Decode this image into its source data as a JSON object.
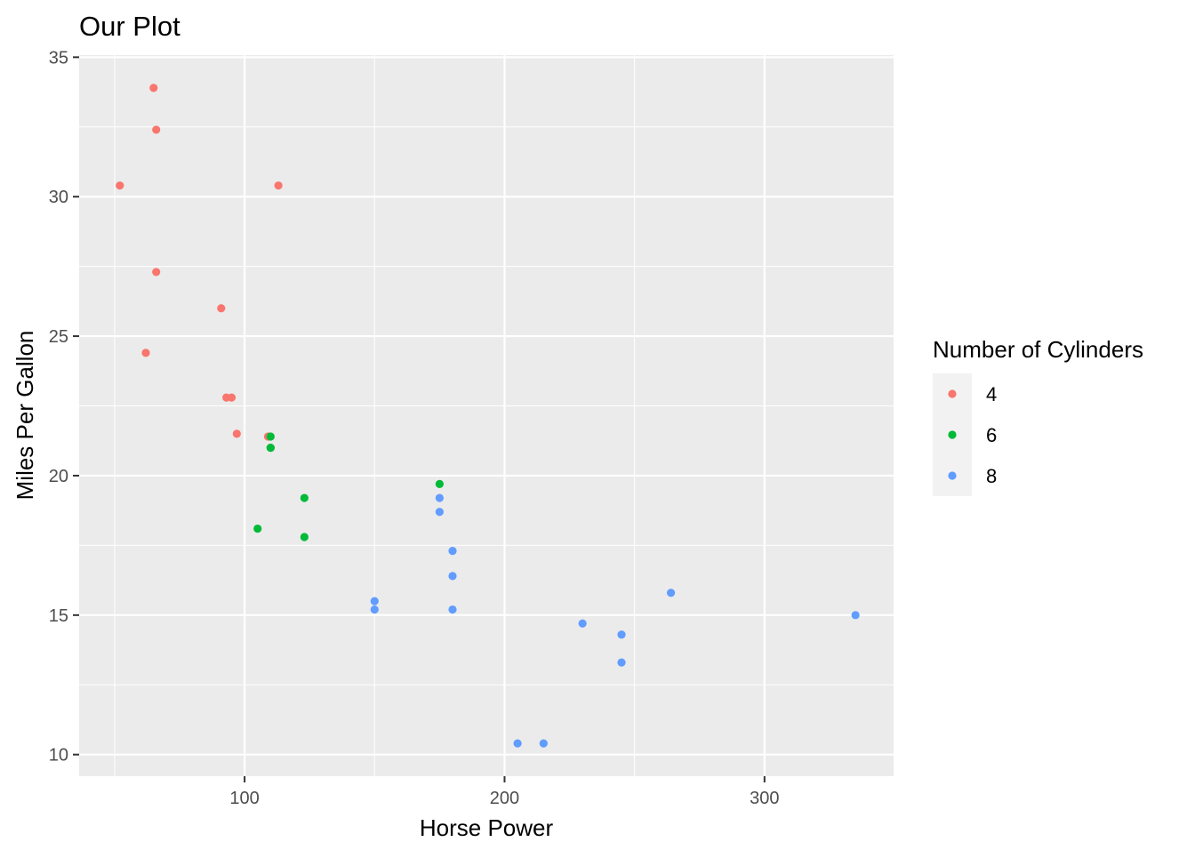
{
  "chart_data": {
    "type": "scatter",
    "title": "Our Plot",
    "xlabel": "Horse Power",
    "ylabel": "Miles Per Gallon",
    "xlim": [
      36.35,
      349.65
    ],
    "ylim": [
      9.225,
      35.075
    ],
    "x_ticks": [
      100,
      200,
      300
    ],
    "y_ticks": [
      10,
      15,
      20,
      25,
      30,
      35
    ],
    "x_ticks_minor": [
      50,
      150,
      250
    ],
    "y_ticks_minor": [
      12.5,
      17.5,
      22.5,
      27.5,
      32.5
    ],
    "grid": true,
    "legend": {
      "title": "Number of Cylinders",
      "position": "right"
    },
    "series": [
      {
        "name": "4",
        "color": "#F8766D",
        "points": [
          [
            93,
            22.8
          ],
          [
            62,
            24.4
          ],
          [
            95,
            22.8
          ],
          [
            66,
            32.4
          ],
          [
            52,
            30.4
          ],
          [
            65,
            33.9
          ],
          [
            97,
            21.5
          ],
          [
            66,
            27.3
          ],
          [
            91,
            26.0
          ],
          [
            113,
            30.4
          ],
          [
            109,
            21.4
          ]
        ]
      },
      {
        "name": "6",
        "color": "#00BA38",
        "points": [
          [
            110,
            21.0
          ],
          [
            110,
            21.0
          ],
          [
            110,
            21.4
          ],
          [
            105,
            18.1
          ],
          [
            123,
            19.2
          ],
          [
            123,
            17.8
          ],
          [
            175,
            19.7
          ]
        ]
      },
      {
        "name": "8",
        "color": "#619CFF",
        "points": [
          [
            175,
            18.7
          ],
          [
            245,
            14.3
          ],
          [
            180,
            16.4
          ],
          [
            180,
            17.3
          ],
          [
            180,
            15.2
          ],
          [
            205,
            10.4
          ],
          [
            215,
            10.4
          ],
          [
            230,
            14.7
          ],
          [
            150,
            15.5
          ],
          [
            150,
            15.2
          ],
          [
            245,
            13.3
          ],
          [
            175,
            19.2
          ],
          [
            264,
            15.8
          ],
          [
            335,
            15.0
          ]
        ]
      }
    ]
  }
}
